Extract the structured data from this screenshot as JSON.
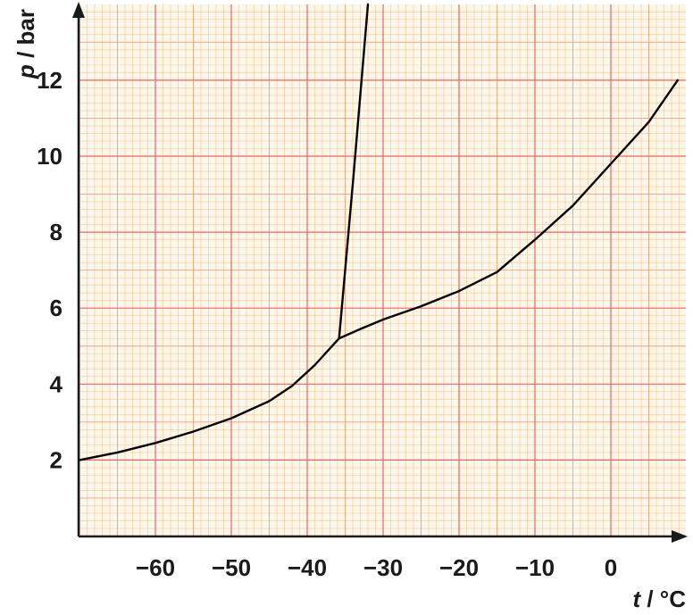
{
  "chart_data": {
    "type": "line",
    "x_axis": {
      "label_var": "t",
      "label_unit": " / °C",
      "range": [
        -70,
        9
      ],
      "ticks": [
        -60,
        -50,
        -40,
        -30,
        -20,
        -10,
        0
      ],
      "tick_labels": [
        "−60",
        "−50",
        "−40",
        "−30",
        "−20",
        "−10",
        "0"
      ]
    },
    "y_axis": {
      "label_var": "p",
      "label_unit": " / bar",
      "range": [
        0,
        14
      ],
      "ticks": [
        2,
        4,
        6,
        8,
        10,
        12
      ],
      "tick_labels": [
        "2",
        "4",
        "6",
        "8",
        "10",
        "12"
      ]
    },
    "grid": {
      "visible": true,
      "style": "graph paper",
      "major_color": "#e8665f",
      "minor_color": "#f5c98a"
    },
    "line_color": "#000000",
    "series": [
      {
        "x": [
          -70,
          -65,
          -60,
          -55,
          -50,
          -45,
          -42,
          -39,
          -36.5,
          -35.8,
          -33,
          -30,
          -25,
          -20,
          -15,
          -10,
          -5,
          0,
          5,
          8.8
        ],
        "y": [
          2.0,
          2.2,
          2.45,
          2.75,
          3.1,
          3.55,
          3.95,
          4.5,
          5.05,
          5.2,
          5.45,
          5.7,
          6.05,
          6.45,
          6.95,
          7.8,
          8.7,
          9.8,
          10.9,
          12.0
        ]
      },
      {
        "x": [
          -35.8,
          -33.9,
          -32.0
        ],
        "y": [
          5.2,
          9.5,
          14.0
        ]
      }
    ]
  }
}
